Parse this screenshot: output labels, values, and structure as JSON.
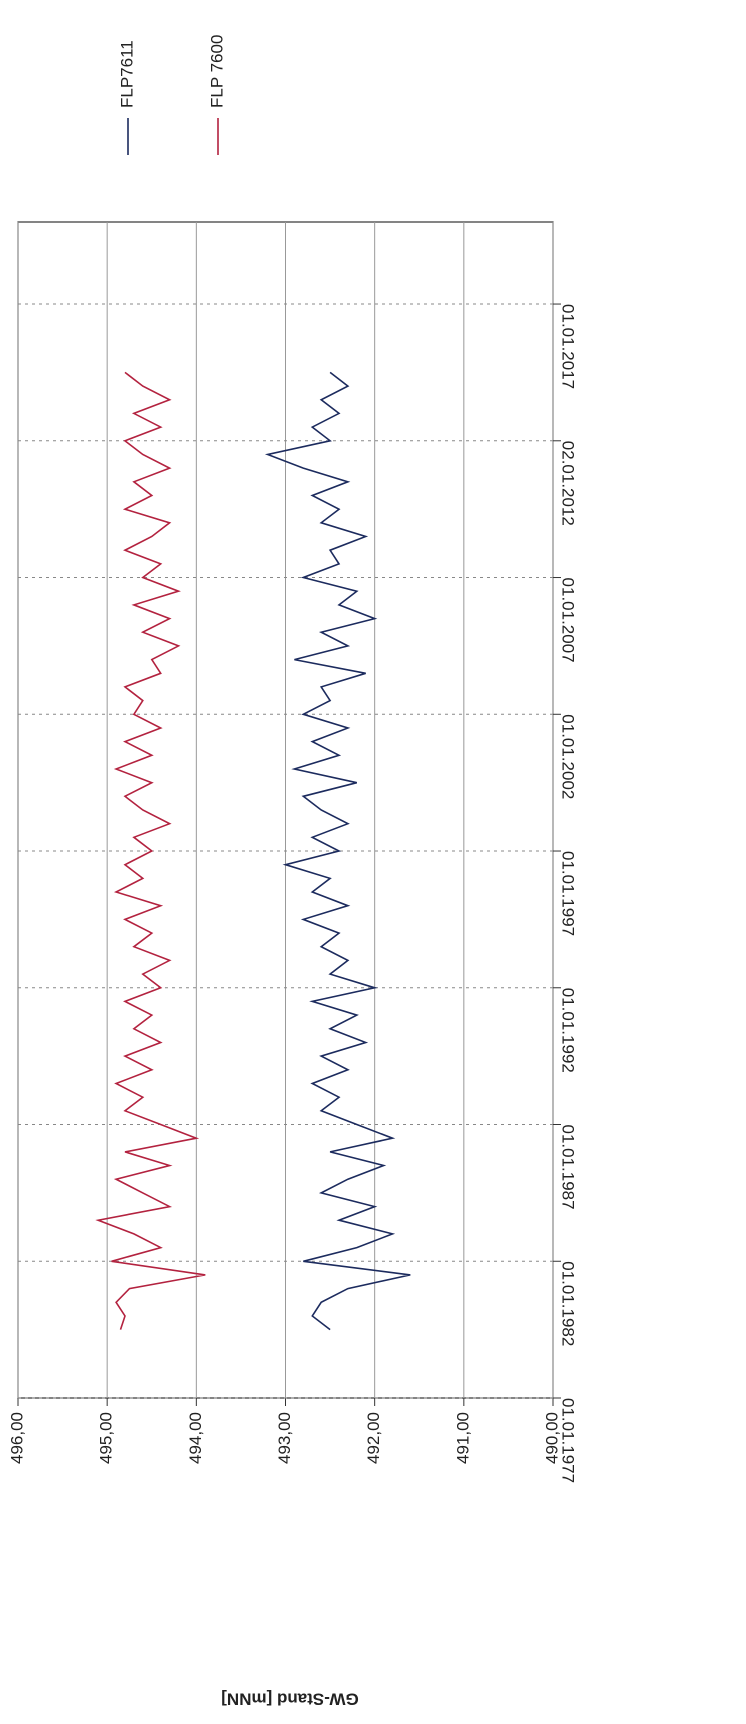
{
  "chart_data": {
    "type": "line",
    "y_label": "GW-Stand [mNN]",
    "xlim": [
      1977,
      2020
    ],
    "xticks": [
      {
        "value": 1977,
        "label": "01.01.1977"
      },
      {
        "value": 1982,
        "label": "01.01.1982"
      },
      {
        "value": 1987,
        "label": "01.01.1987"
      },
      {
        "value": 1992,
        "label": "01.01.1992"
      },
      {
        "value": 1997,
        "label": "01.01.1997"
      },
      {
        "value": 2002,
        "label": "01.01.2002"
      },
      {
        "value": 2007,
        "label": "01.01.2007"
      },
      {
        "value": 2012,
        "label": "02.01.2012"
      },
      {
        "value": 2017,
        "label": "01.01.2017"
      }
    ],
    "ylim": [
      490,
      496
    ],
    "yticks": [
      {
        "value": 490,
        "label": "490,00"
      },
      {
        "value": 491,
        "label": "491,00"
      },
      {
        "value": 492,
        "label": "492,00"
      },
      {
        "value": 493,
        "label": "493,00"
      },
      {
        "value": 494,
        "label": "494,00"
      },
      {
        "value": 495,
        "label": "495,00"
      },
      {
        "value": 496,
        "label": "496,00"
      }
    ],
    "grid": true,
    "x": [
      1979.5,
      1980,
      1980.5,
      1981,
      1981.5,
      1982,
      1982.5,
      1983,
      1983.5,
      1984,
      1984.5,
      1985,
      1985.5,
      1986,
      1986.5,
      1987,
      1987.5,
      1988,
      1988.5,
      1989,
      1989.5,
      1990,
      1990.5,
      1991,
      1991.5,
      1992,
      1992.5,
      1993,
      1993.5,
      1994,
      1994.5,
      1995,
      1995.5,
      1996,
      1996.5,
      1997,
      1997.5,
      1998,
      1998.5,
      1999,
      1999.5,
      2000,
      2000.5,
      2001,
      2001.5,
      2002,
      2002.5,
      2003,
      2003.5,
      2004,
      2004.5,
      2005,
      2005.5,
      2006,
      2006.5,
      2007,
      2007.5,
      2008,
      2008.5,
      2009,
      2009.5,
      2010,
      2010.5,
      2011,
      2011.5,
      2012,
      2012.5,
      2013,
      2013.5,
      2014,
      2014.5
    ],
    "series": [
      {
        "name": "FLP7611",
        "color": "#1c2b5e",
        "values": [
          492.5,
          492.7,
          492.6,
          492.3,
          491.6,
          492.8,
          492.2,
          491.8,
          492.4,
          492.0,
          492.6,
          492.3,
          491.9,
          492.5,
          491.8,
          492.2,
          492.6,
          492.4,
          492.7,
          492.3,
          492.6,
          492.1,
          492.5,
          492.2,
          492.7,
          492.0,
          492.5,
          492.3,
          492.6,
          492.4,
          492.8,
          492.3,
          492.7,
          492.5,
          493.0,
          492.4,
          492.7,
          492.3,
          492.6,
          492.8,
          492.2,
          492.9,
          492.4,
          492.7,
          492.3,
          492.8,
          492.5,
          492.6,
          492.1,
          492.9,
          492.3,
          492.6,
          492.0,
          492.4,
          492.2,
          492.8,
          492.4,
          492.5,
          492.1,
          492.6,
          492.4,
          492.7,
          492.3,
          492.8,
          493.2,
          492.5,
          492.7,
          492.4,
          492.6,
          492.3,
          492.5
        ]
      },
      {
        "name": "FLP 7600",
        "color": "#b3223f",
        "values": [
          494.85,
          494.8,
          494.9,
          494.75,
          493.9,
          494.95,
          494.4,
          494.7,
          495.1,
          494.3,
          494.6,
          494.9,
          494.3,
          494.8,
          494.0,
          494.4,
          494.8,
          494.6,
          494.9,
          494.5,
          494.8,
          494.4,
          494.7,
          494.5,
          494.8,
          494.4,
          494.6,
          494.3,
          494.7,
          494.5,
          494.8,
          494.4,
          494.9,
          494.6,
          494.8,
          494.5,
          494.7,
          494.3,
          494.6,
          494.8,
          494.5,
          494.9,
          494.5,
          494.8,
          494.4,
          494.7,
          494.6,
          494.8,
          494.4,
          494.5,
          494.2,
          494.6,
          494.3,
          494.7,
          494.2,
          494.6,
          494.4,
          494.8,
          494.5,
          494.3,
          494.8,
          494.5,
          494.7,
          494.3,
          494.6,
          494.8,
          494.4,
          494.7,
          494.3,
          494.6,
          494.8
        ]
      }
    ]
  }
}
